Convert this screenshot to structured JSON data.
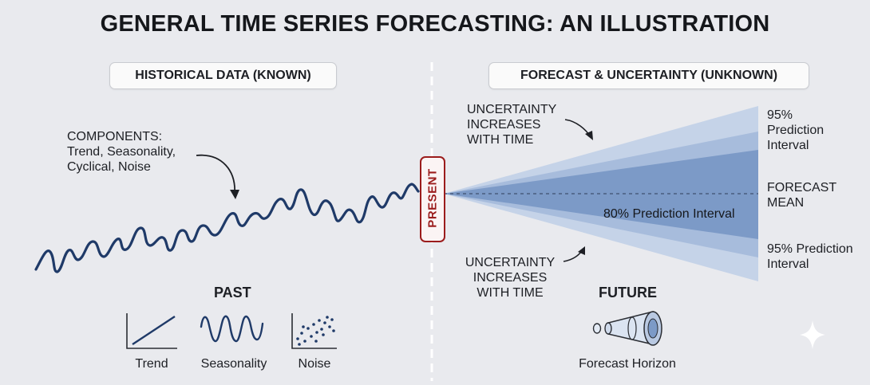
{
  "title": "GENERAL TIME SERIES FORECASTING: AN ILLUSTRATION",
  "historical": {
    "header": "HISTORICAL DATA (KNOWN)",
    "components_heading": "COMPONENTS:",
    "components_line1": "Trend, Seasonality,",
    "components_line2": "Cyclical, Noise",
    "past_label": "PAST",
    "icons": [
      {
        "name": "trend-icon",
        "label": "Trend"
      },
      {
        "name": "seasonality-icon",
        "label": "Seasonality"
      },
      {
        "name": "noise-icon",
        "label": "Noise"
      }
    ]
  },
  "present_label": "PRESENT",
  "forecast": {
    "header": "FORECAST & UNCERTAINTY (UNKNOWN)",
    "uncertainty_top": [
      "UNCERTAINTY",
      "INCREASES",
      "WITH TIME"
    ],
    "uncertainty_bottom": [
      "UNCERTAINTY",
      "INCREASES",
      "WITH TIME"
    ],
    "interval_95_top": [
      "95%",
      "Prediction",
      "Interval"
    ],
    "forecast_mean": [
      "FORECAST",
      "MEAN"
    ],
    "interval_80": "80% Prediction Interval",
    "interval_95_bottom": [
      "95% Prediction",
      "Interval"
    ],
    "future_label": "FUTURE",
    "horizon_label": "Forecast Horizon",
    "horizon_icon": "cone-icon"
  },
  "colors": {
    "background": "#e9eaee",
    "series_line": "#1f3a68",
    "band_95": "#c5d3e8",
    "band_80": "#93acd2",
    "band_inner": "#6f8fbf",
    "present_border": "#9b1c1c"
  }
}
